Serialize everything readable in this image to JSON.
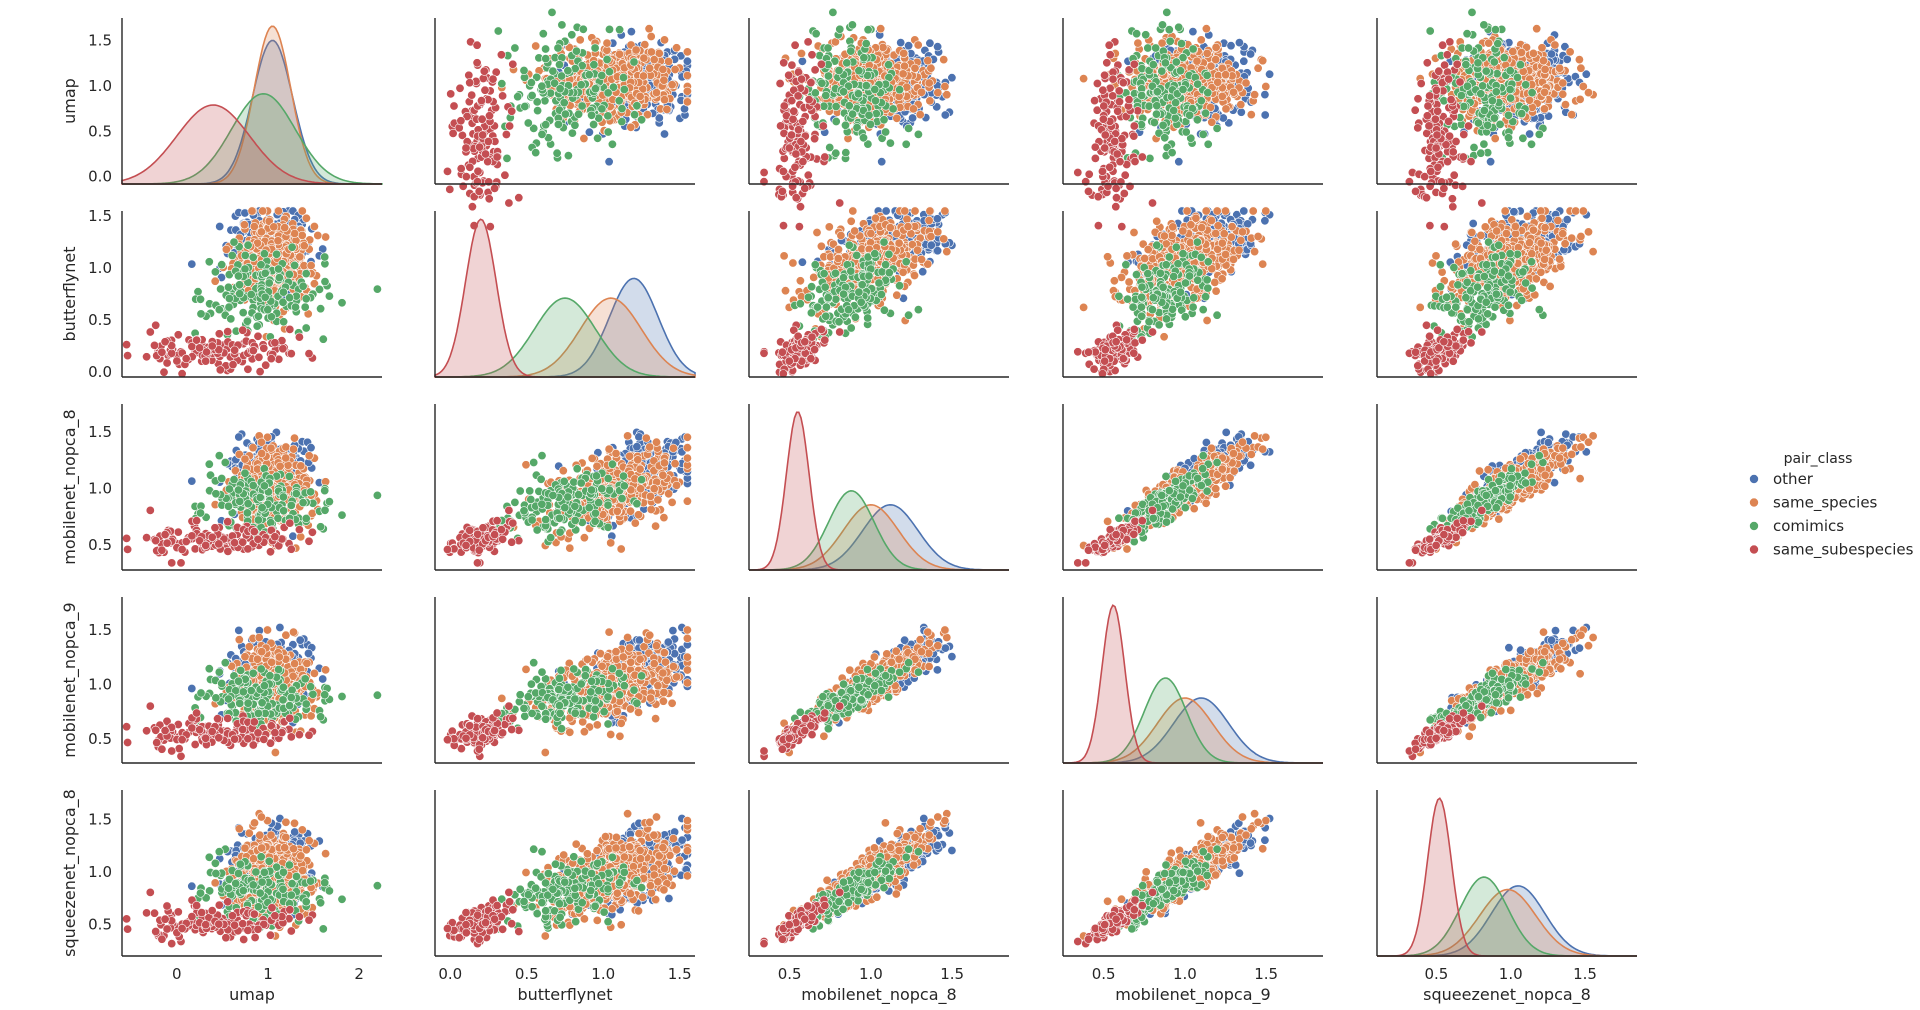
{
  "chart_data": {
    "type": "scatter",
    "subtype": "pairplot",
    "variables": [
      "umap",
      "butterflynet",
      "mobilenet_nopca_8",
      "mobilenet_nopca_9",
      "squeezenet_nopca_8"
    ],
    "diagonal": "kde",
    "grid": false,
    "hue": "pair_class",
    "legend": {
      "title": "pair_class",
      "placement": "right",
      "entries": [
        "other",
        "same_species",
        "comimics",
        "same_subespecies"
      ]
    },
    "colors": {
      "other": "#4c72b0",
      "same_species": "#dd8452",
      "comimics": "#55a868",
      "same_subespecies": "#c44e52"
    },
    "axes": {
      "umap": {
        "lim": [
          -0.6,
          2.25
        ],
        "ticks": [
          "0",
          "1",
          "2"
        ],
        "ytick_values": [
          0.0,
          0.5,
          1.0,
          1.5
        ],
        "yticks": [
          "0.0",
          "0.5",
          "1.0",
          "1.5"
        ],
        "ylim": [
          -0.08,
          1.75
        ]
      },
      "butterflynet": {
        "lim": [
          -0.1,
          1.6
        ],
        "ticks": [
          "0.0",
          "0.5",
          "1.0",
          "1.5"
        ],
        "tick_values": [
          0.0,
          0.5,
          1.0,
          1.5
        ],
        "ylim": [
          -0.05,
          1.55
        ]
      },
      "mobilenet_nopca_8": {
        "lim": [
          0.25,
          1.85
        ],
        "ticks": [
          "0.5",
          "1.0",
          "1.5"
        ],
        "tick_values": [
          0.5,
          1.0,
          1.5
        ],
        "ylim": [
          0.28,
          1.75
        ]
      },
      "mobilenet_nopca_9": {
        "lim": [
          0.25,
          1.85
        ],
        "ticks": [
          "0.5",
          "1.0",
          "1.5"
        ],
        "tick_values": [
          0.5,
          1.0,
          1.5
        ],
        "ylim": [
          0.28,
          1.8
        ]
      },
      "squeezenet_nopca_8": {
        "lim": [
          0.1,
          1.85
        ],
        "ticks": [
          "0.5",
          "1.0",
          "1.5"
        ],
        "tick_values": [
          0.5,
          1.0,
          1.5
        ],
        "ylim": [
          0.2,
          1.78
        ]
      }
    },
    "class_distributions": {
      "other": {
        "umap": {
          "mean": 1.05,
          "sd": 0.22
        },
        "butterflynet": {
          "mean": 1.2,
          "sd": 0.16
        },
        "mobilenet_nopca_8": {
          "mean": 1.12,
          "sd": 0.17
        },
        "mobilenet_nopca_9": {
          "mean": 1.1,
          "sd": 0.17
        },
        "squeezenet_nopca_8": {
          "mean": 1.05,
          "sd": 0.18
        }
      },
      "same_species": {
        "umap": {
          "mean": 1.05,
          "sd": 0.2
        },
        "butterflynet": {
          "mean": 1.05,
          "sd": 0.2
        },
        "mobilenet_nopca_8": {
          "mean": 1.0,
          "sd": 0.17
        },
        "mobilenet_nopca_9": {
          "mean": 1.0,
          "sd": 0.17
        },
        "squeezenet_nopca_8": {
          "mean": 0.98,
          "sd": 0.19
        }
      },
      "comimics": {
        "umap": {
          "mean": 0.95,
          "sd": 0.35
        },
        "butterflynet": {
          "mean": 0.75,
          "sd": 0.2
        },
        "mobilenet_nopca_8": {
          "mean": 0.88,
          "sd": 0.14
        },
        "mobilenet_nopca_9": {
          "mean": 0.88,
          "sd": 0.13
        },
        "squeezenet_nopca_8": {
          "mean": 0.82,
          "sd": 0.16
        }
      },
      "same_subespecies": {
        "umap": {
          "mean": 0.4,
          "sd": 0.4
        },
        "butterflynet": {
          "mean": 0.2,
          "sd": 0.1
        },
        "mobilenet_nopca_8": {
          "mean": 0.55,
          "sd": 0.07
        },
        "mobilenet_nopca_9": {
          "mean": 0.56,
          "sd": 0.07
        },
        "squeezenet_nopca_8": {
          "mean": 0.52,
          "sd": 0.08
        }
      }
    },
    "points_per_class": {
      "other": 300,
      "same_species": 450,
      "comimics": 160,
      "same_subespecies": 130
    }
  }
}
